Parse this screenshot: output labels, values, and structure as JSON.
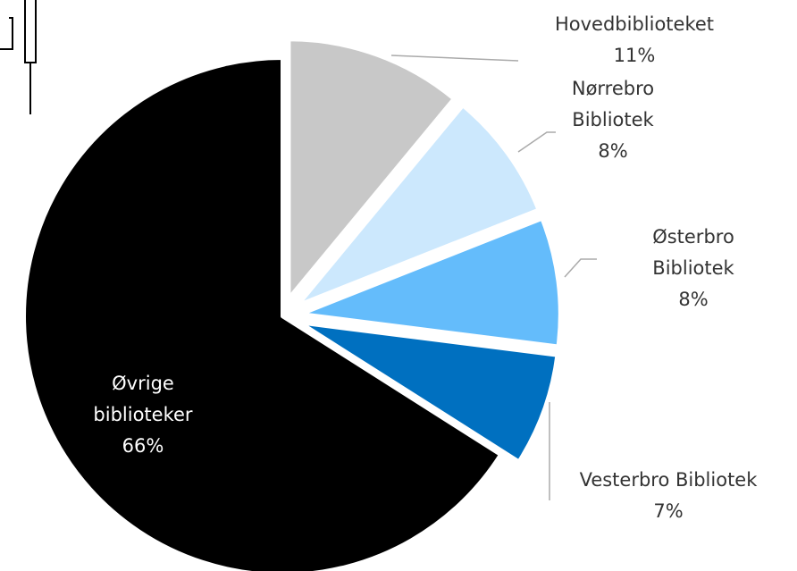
{
  "chart_data": {
    "type": "pie",
    "categories": [
      "Hovedbiblioteket",
      "Nørrebro Bibliotek",
      "Østerbro Bibliotek",
      "Vesterbro Bibliotek",
      "Øvrige biblioteker"
    ],
    "values": [
      11,
      8,
      8,
      7,
      66
    ],
    "value_labels": [
      "11%",
      "8%",
      "8%",
      "7%",
      "66%"
    ],
    "colors": [
      "#c8c8c8",
      "#cce8fd",
      "#64bcfb",
      "#0070c0",
      "#000000"
    ]
  }
}
